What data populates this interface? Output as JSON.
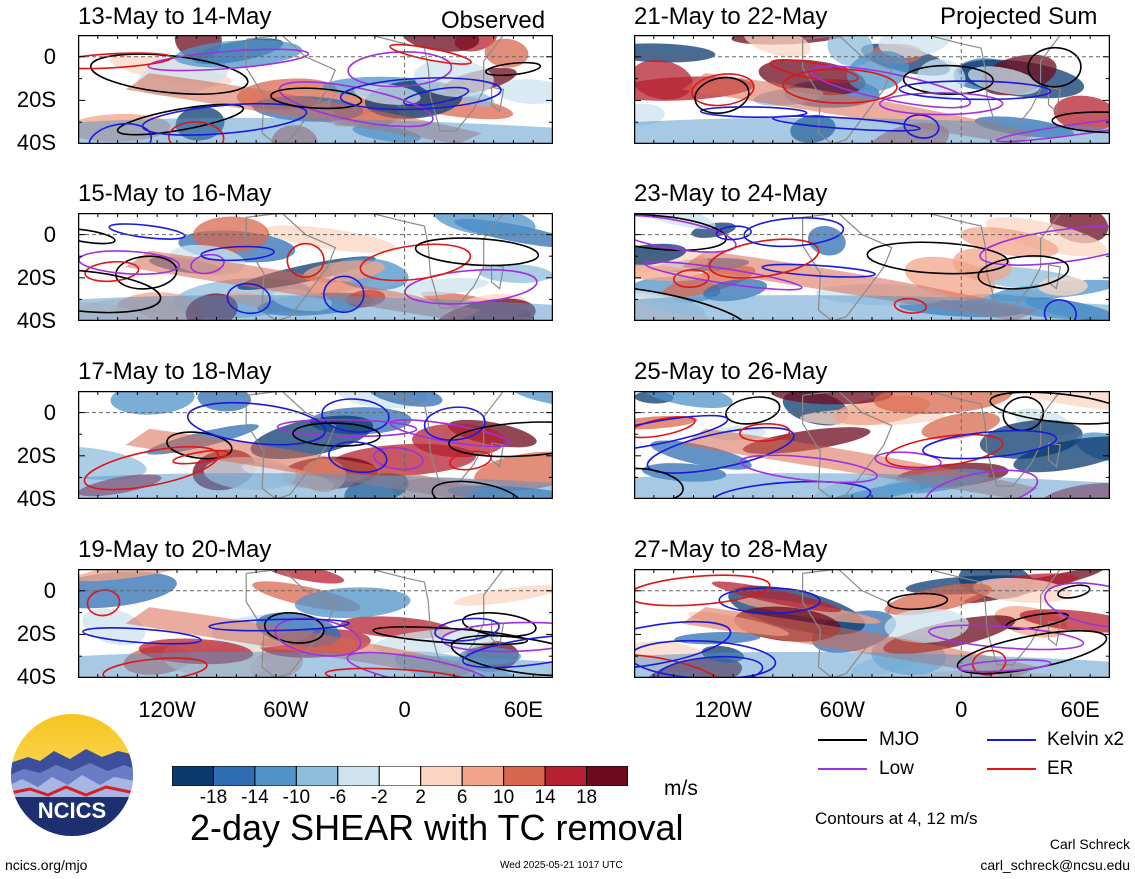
{
  "chart_data": [
    {
      "type": "heatmap",
      "title": "13-May to 14-May",
      "corner_label": "Observed",
      "column": "Observed"
    },
    {
      "type": "heatmap",
      "title": "15-May to 16-May",
      "column": "Observed"
    },
    {
      "type": "heatmap",
      "title": "17-May to 18-May",
      "column": "Observed"
    },
    {
      "type": "heatmap",
      "title": "19-May to 20-May",
      "column": "Observed"
    },
    {
      "type": "heatmap",
      "title": "21-May to 22-May",
      "corner_label": "Projected Sum",
      "column": "Projected Sum"
    },
    {
      "type": "heatmap",
      "title": "23-May to 24-May",
      "column": "Projected Sum"
    },
    {
      "type": "heatmap",
      "title": "25-May to 26-May",
      "column": "Projected Sum"
    },
    {
      "type": "heatmap",
      "title": "27-May to 28-May",
      "column": "Projected Sum"
    }
  ],
  "axes": {
    "lat_ticks": [
      "0",
      "20S",
      "40S"
    ],
    "lon_ticks": [
      "120W",
      "60W",
      "0",
      "60E"
    ],
    "lat_range": [
      -40,
      10
    ],
    "lon_range": [
      -165,
      75
    ]
  },
  "colorbar": {
    "unit": "m/s",
    "ticks": [
      "-18",
      "-14",
      "-10",
      "-6",
      "-2",
      "2",
      "6",
      "10",
      "14",
      "18"
    ],
    "colors": [
      "#0a3a6e",
      "#2f6db3",
      "#4f93c9",
      "#8fbedd",
      "#cde3ef",
      "#ffffff",
      "#fbd5c3",
      "#f2a488",
      "#d9674f",
      "#b52130",
      "#6e0a1e"
    ]
  },
  "legend": {
    "items": [
      {
        "label": "MJO",
        "color": "#000000"
      },
      {
        "label": "Kelvin x2",
        "color": "#1a1adc"
      },
      {
        "label": "Low",
        "color": "#a030e0"
      },
      {
        "label": "ER",
        "color": "#e01515"
      }
    ],
    "contours_note": "Contours at 4, 12 m/s"
  },
  "branding": {
    "logo_text": "NCICS",
    "main_title": "2-day SHEAR with TC removal",
    "site": "ncics.org/mjo",
    "timestamp": "Wed 2025-05-21 1017 UTC",
    "author": "Carl Schreck",
    "email": "carl_schreck@ncsu.edu"
  }
}
